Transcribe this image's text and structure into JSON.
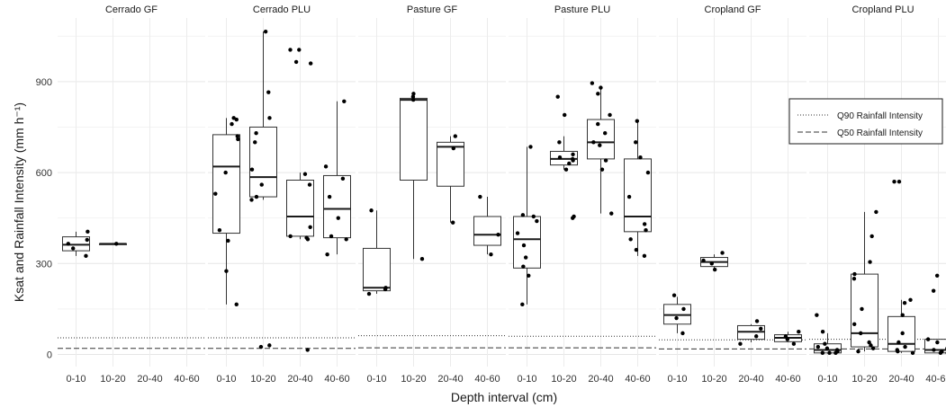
{
  "chart_data": {
    "type": "box",
    "facets": [
      {
        "label": "Cerrado GF",
        "q90": 55,
        "q50": 20,
        "boxes": [
          {
            "category": "0-10",
            "min": 325,
            "q1": 342,
            "median": 362,
            "q3": 388,
            "max": 405,
            "points": [
              325,
              350,
              365,
              378,
              405
            ]
          },
          {
            "category": "10-20",
            "min": 365,
            "q1": 365,
            "median": 365,
            "q3": 365,
            "max": 365,
            "points": [
              365
            ]
          },
          {
            "category": "20-40",
            "points": []
          },
          {
            "category": "40-60",
            "points": []
          }
        ]
      },
      {
        "label": "Cerrado PLU",
        "q90": 55,
        "q50": 20,
        "boxes": [
          {
            "category": "0-10",
            "min": 165,
            "q1": 400,
            "median": 620,
            "q3": 725,
            "max": 780,
            "points": [
              165,
              275,
              375,
              410,
              530,
              600,
              710,
              720,
              760,
              775,
              780
            ]
          },
          {
            "category": "10-20",
            "min": 510,
            "q1": 520,
            "median": 585,
            "q3": 750,
            "max": 1065,
            "points": [
              25,
              30,
              510,
              520,
              560,
              610,
              700,
              730,
              780,
              865,
              1065
            ]
          },
          {
            "category": "20-40",
            "min": 380,
            "q1": 390,
            "median": 455,
            "q3": 575,
            "max": 600,
            "points": [
              15,
              380,
              385,
              390,
              420,
              560,
              595,
              960,
              965,
              1005,
              1005
            ]
          },
          {
            "category": "40-60",
            "min": 330,
            "q1": 385,
            "median": 480,
            "q3": 590,
            "max": 835,
            "points": [
              330,
              380,
              390,
              450,
              520,
              580,
              620,
              835
            ]
          }
        ]
      },
      {
        "label": "Pasture GF",
        "q90": 62,
        "q50": 22,
        "boxes": [
          {
            "category": "0-10",
            "min": 200,
            "q1": 210,
            "median": 220,
            "q3": 350,
            "max": 475,
            "points": [
              200,
              215,
              220,
              475
            ]
          },
          {
            "category": "10-20",
            "min": 315,
            "q1": 575,
            "median": 840,
            "q3": 845,
            "max": 860,
            "points": [
              315,
              840,
              850,
              860
            ]
          },
          {
            "category": "20-40",
            "min": 435,
            "q1": 555,
            "median": 685,
            "q3": 700,
            "max": 720,
            "points": [
              435,
              680,
              720
            ]
          },
          {
            "category": "40-60",
            "min": 330,
            "q1": 360,
            "median": 395,
            "q3": 455,
            "max": 520,
            "points": [
              330,
              395,
              520
            ]
          }
        ]
      },
      {
        "label": "Pasture PLU",
        "q90": 60,
        "q50": 22,
        "boxes": [
          {
            "category": "0-10",
            "min": 165,
            "q1": 285,
            "median": 380,
            "q3": 455,
            "max": 685,
            "points": [
              165,
              260,
              290,
              320,
              360,
              400,
              440,
              455,
              460,
              685
            ]
          },
          {
            "category": "10-20",
            "min": 610,
            "q1": 625,
            "median": 645,
            "q3": 670,
            "max": 720,
            "points": [
              450,
              455,
              610,
              630,
              640,
              645,
              650,
              660,
              700,
              790,
              850
            ]
          },
          {
            "category": "20-40",
            "min": 465,
            "q1": 645,
            "median": 700,
            "q3": 775,
            "max": 880,
            "points": [
              465,
              610,
              640,
              690,
              700,
              730,
              760,
              790,
              860,
              880,
              895
            ]
          },
          {
            "category": "40-60",
            "min": 325,
            "q1": 405,
            "median": 455,
            "q3": 645,
            "max": 770,
            "points": [
              325,
              345,
              380,
              410,
              430,
              520,
              600,
              650,
              700,
              770
            ]
          }
        ]
      },
      {
        "label": "Cropland GF",
        "q90": 48,
        "q50": 18,
        "boxes": [
          {
            "category": "0-10",
            "min": 70,
            "q1": 100,
            "median": 130,
            "q3": 165,
            "max": 190,
            "points": [
              70,
              120,
              150,
              195
            ]
          },
          {
            "category": "10-20",
            "min": 280,
            "q1": 290,
            "median": 305,
            "q3": 320,
            "max": 330,
            "points": [
              280,
              300,
              310,
              335
            ]
          },
          {
            "category": "20-40",
            "min": 40,
            "q1": 50,
            "median": 75,
            "q3": 95,
            "max": 100,
            "points": [
              35,
              60,
              85,
              110
            ]
          },
          {
            "category": "40-60",
            "min": 40,
            "q1": 42,
            "median": 55,
            "q3": 65,
            "max": 75,
            "points": [
              35,
              50,
              60,
              75
            ]
          }
        ]
      },
      {
        "label": "Cropland PLU",
        "q90": 50,
        "q50": 18,
        "boxes": [
          {
            "category": "0-10",
            "min": 5,
            "q1": 5,
            "median": 15,
            "q3": 35,
            "max": 70,
            "points": [
              5,
              5,
              5,
              10,
              15,
              20,
              25,
              35,
              75,
              130
            ]
          },
          {
            "category": "10-20",
            "min": 10,
            "q1": 25,
            "median": 70,
            "q3": 265,
            "max": 470,
            "points": [
              10,
              20,
              30,
              40,
              70,
              100,
              150,
              250,
              265,
              305,
              390,
              470
            ]
          },
          {
            "category": "20-40",
            "min": 5,
            "q1": 10,
            "median": 35,
            "q3": 125,
            "max": 180,
            "points": [
              5,
              10,
              15,
              25,
              40,
              70,
              130,
              170,
              180,
              570,
              570
            ]
          },
          {
            "category": "40-60",
            "min": 5,
            "q1": 5,
            "median": 15,
            "q3": 50,
            "max": 50,
            "points": [
              5,
              5,
              10,
              15,
              20,
              40,
              50,
              210,
              260
            ]
          }
        ]
      }
    ],
    "ylabel": "Ksat and Rainfall Intensity (mm h⁻¹)",
    "xlabel": "Depth interval (cm)",
    "categories": [
      "0-10",
      "10-20",
      "20-40",
      "40-60"
    ],
    "yticks": [
      0,
      300,
      600,
      900
    ],
    "ylim": [
      -40,
      1110
    ],
    "grid": true,
    "legend": {
      "position": "right",
      "items": [
        {
          "label": "Q90 Rainfall Intensity",
          "style": "dotted"
        },
        {
          "label": "Q50 Rainfall Intensity",
          "style": "dashed"
        }
      ]
    }
  }
}
